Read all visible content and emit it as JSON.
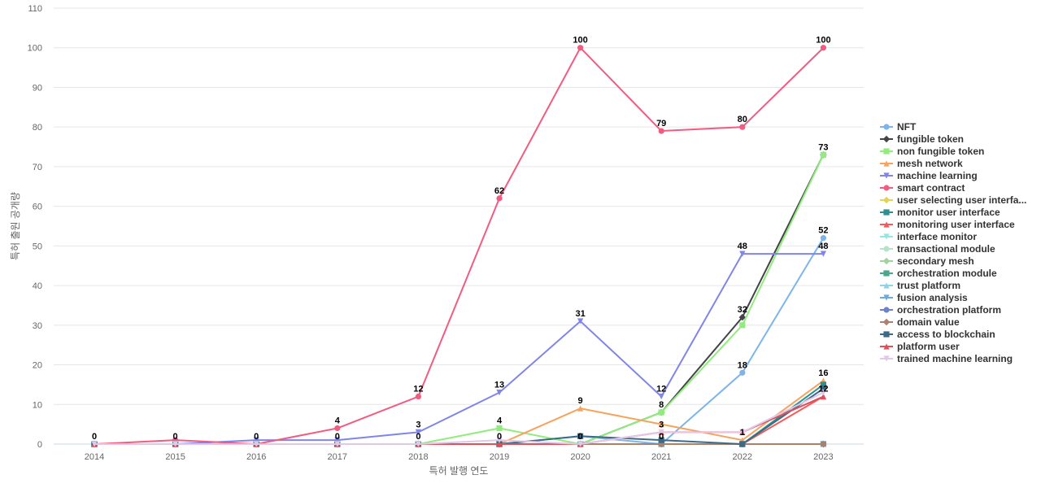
{
  "chart_data": {
    "type": "line",
    "title": "",
    "xlabel": "특허 발행 연도",
    "ylabel": "특허 출원 공개량",
    "categories": [
      "2014",
      "2015",
      "2016",
      "2017",
      "2018",
      "2019",
      "2020",
      "2021",
      "2022",
      "2023"
    ],
    "ylim": [
      0,
      110
    ],
    "yticks": [
      0,
      10,
      20,
      30,
      40,
      50,
      60,
      70,
      80,
      90,
      100,
      110
    ],
    "grid": true,
    "legend_position": "right",
    "series": [
      {
        "name": "NFT",
        "color": "#7cb5ec",
        "marker": "circle",
        "values": [
          0,
          0,
          0,
          0,
          0,
          0,
          2,
          0,
          18,
          52
        ]
      },
      {
        "name": "fungible token",
        "color": "#434348",
        "marker": "diamond",
        "values": [
          0,
          0,
          0,
          0,
          0,
          0,
          0,
          8,
          32,
          73
        ]
      },
      {
        "name": "non fungible token",
        "color": "#90ed7d",
        "marker": "square",
        "values": [
          0,
          0,
          0,
          0,
          0,
          4,
          0,
          8,
          30,
          73
        ]
      },
      {
        "name": "mesh network",
        "color": "#f7a35c",
        "marker": "triangle",
        "values": [
          0,
          0,
          0,
          0,
          0,
          0,
          9,
          5,
          1,
          16
        ]
      },
      {
        "name": "machine learning",
        "color": "#8085e9",
        "marker": "triangle-down",
        "values": [
          0,
          0,
          1,
          1,
          3,
          13,
          31,
          12,
          48,
          48
        ]
      },
      {
        "name": "smart contract",
        "color": "#f15c80",
        "marker": "circle",
        "values": [
          0,
          1,
          0,
          4,
          12,
          62,
          100,
          79,
          80,
          100
        ]
      },
      {
        "name": "user selecting user interfa...",
        "color": "#e4d354",
        "marker": "diamond",
        "values": [
          0,
          0,
          0,
          0,
          0,
          0,
          0,
          0,
          0,
          0
        ]
      },
      {
        "name": "monitor user interface",
        "color": "#2b908f",
        "marker": "square",
        "values": [
          0,
          0,
          0,
          0,
          0,
          0,
          0,
          0,
          0,
          15
        ]
      },
      {
        "name": "monitoring user interface",
        "color": "#f45b5b",
        "marker": "triangle",
        "values": [
          0,
          0,
          0,
          0,
          0,
          0,
          0,
          0,
          0,
          12
        ]
      },
      {
        "name": "interface monitor",
        "color": "#91e8e1",
        "marker": "triangle-down",
        "values": [
          0,
          0,
          0,
          0,
          0,
          0,
          0,
          0,
          0,
          0
        ]
      },
      {
        "name": "transactional module",
        "color": "#b5e3c8",
        "marker": "circle",
        "values": [
          0,
          0,
          0,
          0,
          0,
          0,
          0,
          0,
          0,
          0
        ]
      },
      {
        "name": "secondary mesh",
        "color": "#a3d39c",
        "marker": "diamond",
        "values": [
          0,
          0,
          0,
          0,
          0,
          0,
          0,
          0,
          0,
          0
        ]
      },
      {
        "name": "orchestration module",
        "color": "#4aa88a",
        "marker": "square",
        "values": [
          0,
          0,
          0,
          0,
          0,
          0,
          0,
          0,
          0,
          0
        ]
      },
      {
        "name": "trust platform",
        "color": "#8fd3e8",
        "marker": "triangle",
        "values": [
          0,
          0,
          0,
          0,
          0,
          0,
          0,
          0,
          0,
          0
        ]
      },
      {
        "name": "fusion analysis",
        "color": "#6ea8dc",
        "marker": "triangle-down",
        "values": [
          0,
          0,
          0,
          0,
          0,
          0,
          0,
          0,
          0,
          0
        ]
      },
      {
        "name": "orchestration platform",
        "color": "#6b83c9",
        "marker": "circle",
        "values": [
          0,
          0,
          0,
          0,
          0,
          0,
          0,
          0,
          0,
          0
        ]
      },
      {
        "name": "domain value",
        "color": "#b07f6a",
        "marker": "diamond",
        "values": [
          0,
          0,
          0,
          0,
          0,
          0,
          0,
          0,
          0,
          0
        ]
      },
      {
        "name": "access to blockchain",
        "color": "#3d6b85",
        "marker": "square",
        "values": [
          0,
          0,
          0,
          0,
          0,
          0,
          2,
          1,
          0,
          14
        ]
      },
      {
        "name": "platform user",
        "color": "#e0505a",
        "marker": "triangle",
        "values": [
          0,
          0,
          0,
          0,
          0,
          0,
          0,
          3,
          3,
          12
        ]
      },
      {
        "name": "trained machine learning",
        "color": "#e2c8e8",
        "marker": "triangle-down",
        "values": [
          0,
          0,
          0,
          0,
          0,
          1,
          0,
          3,
          3,
          13
        ]
      }
    ],
    "data_labels": [
      {
        "x": "2014",
        "value": "0"
      },
      {
        "x": "2015",
        "value": "0"
      },
      {
        "x": "2016",
        "value": "0"
      },
      {
        "x": "2017",
        "value": "4"
      },
      {
        "x": "2017",
        "value": "0"
      },
      {
        "x": "2018",
        "value": "12"
      },
      {
        "x": "2018",
        "value": "3"
      },
      {
        "x": "2018",
        "value": "0"
      },
      {
        "x": "2019",
        "value": "62"
      },
      {
        "x": "2019",
        "value": "13"
      },
      {
        "x": "2019",
        "value": "4"
      },
      {
        "x": "2019",
        "value": "0"
      },
      {
        "x": "2020",
        "value": "100"
      },
      {
        "x": "2020",
        "value": "31"
      },
      {
        "x": "2020",
        "value": "9"
      },
      {
        "x": "2020",
        "value": "0"
      },
      {
        "x": "2021",
        "value": "79"
      },
      {
        "x": "2021",
        "value": "12"
      },
      {
        "x": "2021",
        "value": "8"
      },
      {
        "x": "2021",
        "value": "3"
      },
      {
        "x": "2021",
        "value": "0"
      },
      {
        "x": "2022",
        "value": "80"
      },
      {
        "x": "2022",
        "value": "48"
      },
      {
        "x": "2022",
        "value": "32"
      },
      {
        "x": "2022",
        "value": "18"
      },
      {
        "x": "2022",
        "value": "1"
      },
      {
        "x": "2023",
        "value": "100"
      },
      {
        "x": "2023",
        "value": "73"
      },
      {
        "x": "2023",
        "value": "52"
      },
      {
        "x": "2023",
        "value": "48"
      },
      {
        "x": "2023",
        "value": "16"
      },
      {
        "x": "2023",
        "value": "12"
      }
    ]
  }
}
